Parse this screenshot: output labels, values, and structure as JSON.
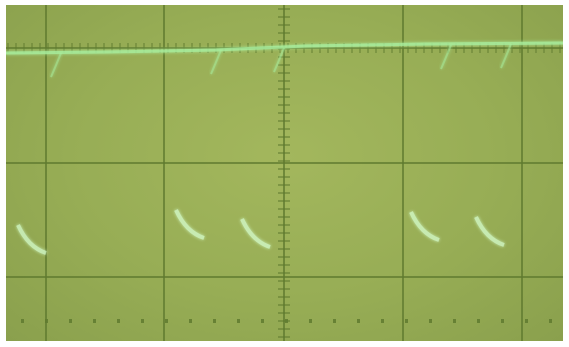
{
  "photo": {
    "subject": "oscilloscope-screen",
    "graticule": {
      "columns": 5,
      "rows": 3,
      "center_axis_ticks": true,
      "dot_row": true
    },
    "colors": {
      "screen": "#97ad55",
      "grid_line": "#5f7a2f",
      "trace": "#a9f0a0",
      "trace_glow": "#d7ffd0"
    }
  }
}
